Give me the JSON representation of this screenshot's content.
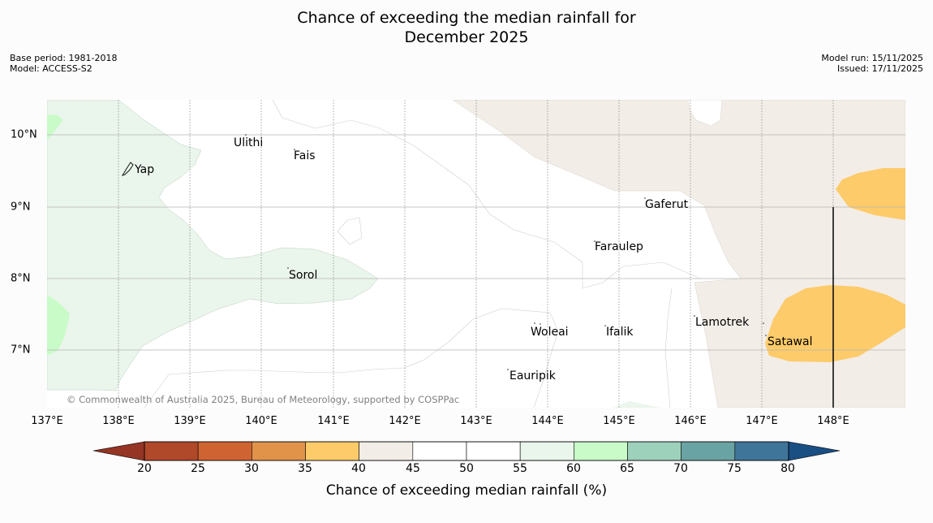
{
  "title_line1": "Chance of exceeding the median rainfall for",
  "title_line2": "December 2025",
  "base_period": "Base period: 1981-2018",
  "model": "Model: ACCESS-S2",
  "model_run": "Model run: 15/11/2025",
  "issued": "Issued: 17/11/2025",
  "longitudes": [
    "137°E",
    "138°E",
    "139°E",
    "140°E",
    "141°E",
    "142°E",
    "143°E",
    "144°E",
    "145°E",
    "146°E",
    "147°E",
    "148°E"
  ],
  "latitudes": [
    "10°N",
    "9°N",
    "8°N",
    "7°N"
  ],
  "islands": {
    "yap": "Yap",
    "ulithi": "Ulithi",
    "fais": "Fais",
    "sorol": "Sorol",
    "gaferut": "Gaferut",
    "faraulep": "Faraulep",
    "woleai": "Woleai",
    "ifalik": "Ifalik",
    "lamotrek": "Lamotrek",
    "satawal": "Satawal",
    "eauripik": "Eauripik"
  },
  "copyright": "© Commonwealth of Australia 2025, Bureau of Meteorology, supported by COSPPac",
  "colorbar": {
    "ticks": [
      "20",
      "25",
      "30",
      "35",
      "40",
      "45",
      "50",
      "55",
      "60",
      "65",
      "70",
      "75",
      "80"
    ],
    "colors": [
      "#b0482a",
      "#cf6432",
      "#e1934a",
      "#fdcb6a",
      "#f2ede7",
      "#ffffff",
      "#ffffff",
      "#eaf5eb",
      "#c9fbc9",
      "#9dd1bb",
      "#6aa3a3",
      "#3f7599"
    ],
    "under_color": "#943525",
    "over_color": "#1a4f84",
    "label": "Chance of exceeding median rainfall (%)"
  }
}
